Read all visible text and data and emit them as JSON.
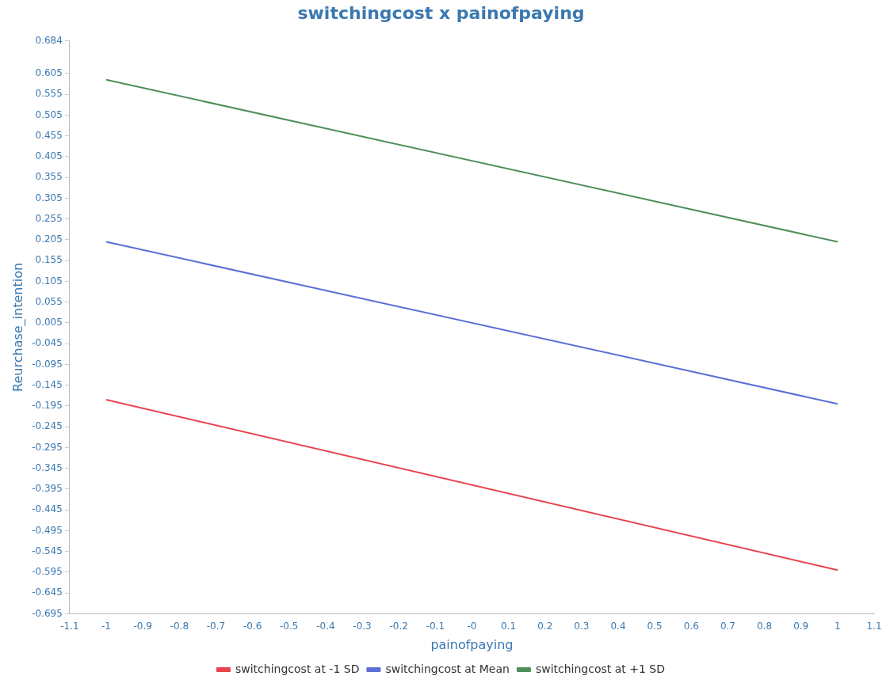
{
  "chart_data": {
    "type": "line",
    "title": "switchingcost x painofpaying",
    "xlabel": "painofpaying",
    "ylabel": "Reurchase_intention",
    "x": [
      -1,
      1
    ],
    "series": [
      {
        "name": "switchingcost at -1 SD",
        "color": "#e8434f",
        "values": [
          -0.18,
          -0.59
        ]
      },
      {
        "name": "switchingcost at Mean",
        "color": "#5b6fd6",
        "values": [
          0.2,
          -0.19
        ]
      },
      {
        "name": "switchingcost at +1 SD",
        "color": "#4e8f5a",
        "values": [
          0.59,
          0.2
        ]
      }
    ],
    "xlim": [
      -1.1,
      1.1
    ],
    "xticks": [
      -1.1,
      -1,
      -0.9,
      -0.8,
      -0.7,
      -0.6,
      -0.5,
      -0.4,
      -0.3,
      -0.2,
      -0.1,
      {
        "value": 0,
        "label": "-0"
      },
      0.1,
      0.2,
      0.3,
      0.4,
      0.5,
      0.6,
      0.7,
      0.8,
      0.9,
      1,
      1.1
    ],
    "ylim": [
      -0.695,
      0.684
    ],
    "yticks": [
      -0.695,
      -0.645,
      -0.595,
      -0.545,
      -0.495,
      -0.445,
      -0.395,
      -0.345,
      -0.295,
      -0.245,
      -0.195,
      -0.145,
      -0.095,
      -0.045,
      0.005,
      0.055,
      0.105,
      0.155,
      0.205,
      0.255,
      0.305,
      0.355,
      0.405,
      0.455,
      0.505,
      0.555,
      0.605,
      0.684
    ],
    "grid": false,
    "legend": "bottom",
    "marker": "none",
    "line_style": "solid"
  }
}
